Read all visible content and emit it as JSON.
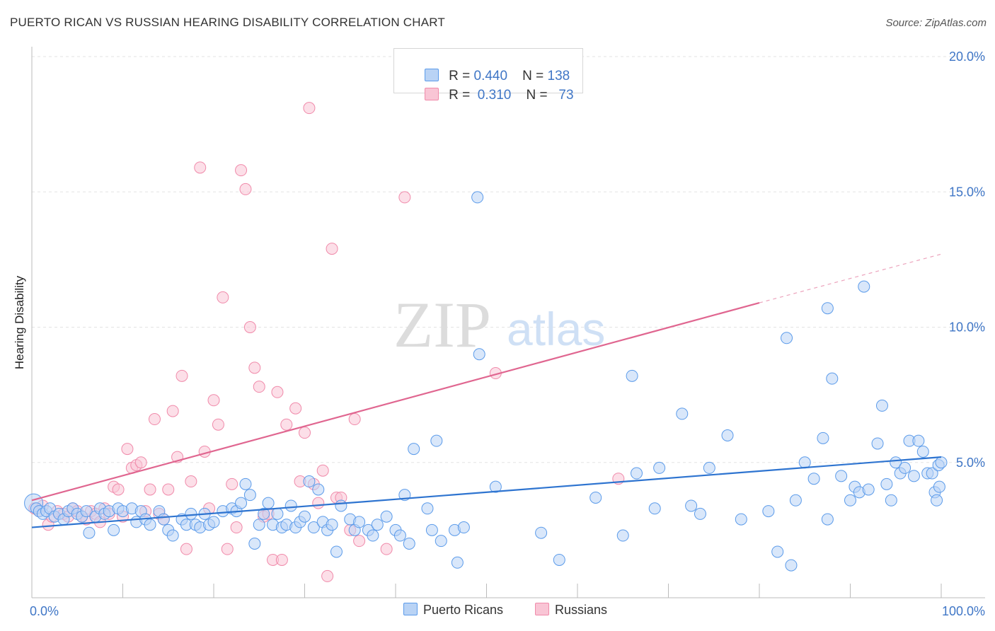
{
  "header": {
    "title": "PUERTO RICAN VS RUSSIAN HEARING DISABILITY CORRELATION CHART",
    "source": "Source: ZipAtlas.com"
  },
  "legend": {
    "series1": {
      "r_label": "R = ",
      "r_value": "0.440",
      "n_label": "N = ",
      "n_value": "138"
    },
    "series2": {
      "r_label": "R = ",
      "r_value": " 0.310",
      "n_label": "N = ",
      "n_value": "  73"
    }
  },
  "bottom_legend": {
    "series1": "Puerto Ricans",
    "series2": "Russians"
  },
  "watermark": {
    "zip": "ZIP",
    "atlas": "atlas"
  },
  "colors": {
    "blue": "#5b9bea",
    "blue_fill": "#b9d3f5",
    "blue_line": "#2e74d0",
    "pink": "#f08aaa",
    "pink_fill": "#f9c5d5",
    "pink_line": "#e06690",
    "tick_text": "#3f76c6"
  },
  "chart_data": {
    "type": "scatter",
    "title": "PUERTO RICAN VS RUSSIAN HEARING DISABILITY CORRELATION CHART",
    "xlabel": "",
    "ylabel": "Hearing Disability",
    "xlim": [
      0,
      100
    ],
    "ylim": [
      0,
      20
    ],
    "y_ticks": [
      5,
      10,
      15,
      20
    ],
    "y_tick_labels": [
      "5.0%",
      "10.0%",
      "15.0%",
      "20.0%"
    ],
    "x_tick_labels": [
      "0.0%",
      "100.0%"
    ],
    "grid": true,
    "legend_position": "top-center",
    "series": [
      {
        "name": "Puerto Ricans",
        "color": "#5b9bea",
        "trend": {
          "x1": 0,
          "y1": 2.6,
          "x2": 100,
          "y2": 5.2
        },
        "points": [
          [
            0.2,
            3.5
          ],
          [
            0.5,
            3.3
          ],
          [
            0.8,
            3.2
          ],
          [
            1.2,
            3.1
          ],
          [
            1.6,
            3.2
          ],
          [
            2.0,
            3.3
          ],
          [
            2.5,
            3.0
          ],
          [
            3.0,
            3.1
          ],
          [
            3.5,
            2.9
          ],
          [
            4.0,
            3.2
          ],
          [
            4.5,
            3.3
          ],
          [
            5.0,
            3.1
          ],
          [
            5.5,
            3.0
          ],
          [
            6.0,
            3.2
          ],
          [
            6.3,
            2.4
          ],
          [
            7.0,
            3.0
          ],
          [
            7.5,
            3.3
          ],
          [
            8.0,
            3.1
          ],
          [
            8.5,
            3.2
          ],
          [
            9.0,
            2.5
          ],
          [
            9.5,
            3.3
          ],
          [
            10.0,
            3.2
          ],
          [
            11.0,
            3.3
          ],
          [
            11.5,
            2.8
          ],
          [
            12.0,
            3.2
          ],
          [
            12.5,
            2.9
          ],
          [
            13.0,
            2.7
          ],
          [
            14.0,
            3.2
          ],
          [
            14.5,
            2.9
          ],
          [
            15.0,
            2.5
          ],
          [
            15.5,
            2.3
          ],
          [
            16.5,
            2.9
          ],
          [
            17.0,
            2.7
          ],
          [
            17.5,
            3.1
          ],
          [
            18.0,
            2.7
          ],
          [
            18.5,
            2.6
          ],
          [
            19.0,
            3.1
          ],
          [
            19.5,
            2.7
          ],
          [
            20.0,
            2.8
          ],
          [
            21.0,
            3.2
          ],
          [
            22.0,
            3.3
          ],
          [
            22.5,
            3.2
          ],
          [
            23.0,
            3.5
          ],
          [
            23.5,
            4.2
          ],
          [
            24.0,
            3.8
          ],
          [
            24.5,
            2.0
          ],
          [
            25.0,
            2.7
          ],
          [
            25.5,
            3.1
          ],
          [
            26.0,
            3.5
          ],
          [
            26.5,
            2.7
          ],
          [
            27.0,
            3.1
          ],
          [
            27.5,
            2.6
          ],
          [
            28.0,
            2.7
          ],
          [
            28.5,
            3.4
          ],
          [
            29.0,
            2.6
          ],
          [
            29.5,
            2.8
          ],
          [
            30.0,
            3.0
          ],
          [
            30.5,
            4.3
          ],
          [
            31.0,
            2.6
          ],
          [
            31.5,
            4.0
          ],
          [
            32.0,
            2.8
          ],
          [
            32.5,
            2.5
          ],
          [
            33.0,
            2.7
          ],
          [
            33.5,
            1.7
          ],
          [
            34.0,
            3.4
          ],
          [
            35.0,
            2.9
          ],
          [
            35.5,
            2.5
          ],
          [
            36.0,
            2.8
          ],
          [
            37.0,
            2.5
          ],
          [
            37.5,
            2.3
          ],
          [
            38.0,
            2.7
          ],
          [
            39.0,
            3.0
          ],
          [
            40.0,
            2.5
          ],
          [
            40.5,
            2.3
          ],
          [
            41.0,
            3.8
          ],
          [
            41.5,
            2.0
          ],
          [
            42.0,
            5.5
          ],
          [
            43.5,
            3.3
          ],
          [
            44.0,
            2.5
          ],
          [
            44.5,
            5.8
          ],
          [
            45.0,
            2.1
          ],
          [
            46.5,
            2.5
          ],
          [
            46.8,
            1.3
          ],
          [
            47.5,
            2.6
          ],
          [
            49.0,
            14.8
          ],
          [
            49.2,
            9.0
          ],
          [
            51.0,
            4.1
          ],
          [
            56.0,
            2.4
          ],
          [
            58.0,
            1.4
          ],
          [
            62.0,
            3.7
          ],
          [
            65.0,
            2.3
          ],
          [
            66.0,
            8.2
          ],
          [
            66.5,
            4.6
          ],
          [
            68.5,
            3.3
          ],
          [
            69.0,
            4.8
          ],
          [
            71.5,
            6.8
          ],
          [
            72.5,
            3.4
          ],
          [
            73.5,
            3.1
          ],
          [
            74.5,
            4.8
          ],
          [
            76.5,
            6.0
          ],
          [
            78.0,
            2.9
          ],
          [
            81.0,
            3.2
          ],
          [
            82.0,
            1.7
          ],
          [
            83.0,
            9.6
          ],
          [
            83.5,
            1.2
          ],
          [
            84.0,
            3.6
          ],
          [
            85.0,
            5.0
          ],
          [
            86.0,
            4.4
          ],
          [
            87.0,
            5.9
          ],
          [
            87.5,
            10.7
          ],
          [
            87.5,
            2.9
          ],
          [
            88.0,
            8.1
          ],
          [
            89.0,
            4.5
          ],
          [
            90.0,
            3.6
          ],
          [
            90.5,
            4.1
          ],
          [
            91.0,
            3.9
          ],
          [
            91.5,
            11.5
          ],
          [
            92.0,
            4.0
          ],
          [
            93.0,
            5.7
          ],
          [
            93.5,
            7.1
          ],
          [
            94.0,
            4.2
          ],
          [
            94.5,
            3.6
          ],
          [
            95.0,
            5.0
          ],
          [
            95.5,
            4.6
          ],
          [
            96.0,
            4.8
          ],
          [
            96.5,
            5.8
          ],
          [
            97.0,
            4.5
          ],
          [
            97.5,
            5.8
          ],
          [
            98.0,
            5.4
          ],
          [
            98.5,
            4.6
          ],
          [
            99.0,
            4.6
          ],
          [
            99.3,
            3.9
          ],
          [
            99.5,
            3.6
          ],
          [
            99.7,
            4.9
          ],
          [
            99.8,
            4.1
          ],
          [
            100.0,
            5.0
          ]
        ]
      },
      {
        "name": "Russians",
        "color": "#f08aaa",
        "trend": {
          "x1": 0,
          "y1": 3.6,
          "x2": 80,
          "y2": 10.9,
          "dash_to_x": 100,
          "dash_to_y": 12.7
        },
        "points": [
          [
            0.3,
            3.3
          ],
          [
            0.8,
            3.2
          ],
          [
            1.2,
            3.4
          ],
          [
            1.8,
            2.7
          ],
          [
            2.2,
            3.0
          ],
          [
            2.8,
            3.2
          ],
          [
            3.5,
            3.1
          ],
          [
            4.0,
            3.0
          ],
          [
            4.5,
            3.3
          ],
          [
            5.0,
            3.2
          ],
          [
            5.5,
            3.0
          ],
          [
            6.0,
            2.9
          ],
          [
            6.5,
            3.2
          ],
          [
            7.0,
            3.1
          ],
          [
            7.5,
            2.8
          ],
          [
            8.0,
            3.3
          ],
          [
            8.5,
            3.1
          ],
          [
            9.0,
            4.1
          ],
          [
            9.5,
            4.0
          ],
          [
            10.0,
            3.0
          ],
          [
            10.5,
            5.5
          ],
          [
            11.0,
            4.8
          ],
          [
            11.5,
            4.9
          ],
          [
            12.0,
            5.0
          ],
          [
            12.5,
            3.2
          ],
          [
            13.0,
            4.0
          ],
          [
            13.5,
            6.6
          ],
          [
            14.0,
            3.1
          ],
          [
            14.5,
            2.9
          ],
          [
            15.0,
            4.0
          ],
          [
            15.5,
            6.9
          ],
          [
            16.0,
            5.2
          ],
          [
            16.5,
            8.2
          ],
          [
            17.0,
            1.8
          ],
          [
            17.5,
            4.3
          ],
          [
            18.5,
            15.9
          ],
          [
            19.0,
            5.4
          ],
          [
            19.5,
            3.3
          ],
          [
            20.0,
            7.3
          ],
          [
            20.5,
            6.4
          ],
          [
            21.0,
            11.1
          ],
          [
            21.5,
            1.8
          ],
          [
            22.0,
            4.2
          ],
          [
            22.5,
            2.6
          ],
          [
            23.0,
            15.8
          ],
          [
            23.5,
            15.1
          ],
          [
            24.0,
            10.0
          ],
          [
            24.5,
            8.5
          ],
          [
            25.0,
            7.8
          ],
          [
            25.5,
            3.0
          ],
          [
            26.0,
            3.1
          ],
          [
            26.5,
            1.4
          ],
          [
            27.0,
            7.6
          ],
          [
            27.5,
            1.4
          ],
          [
            28.0,
            6.4
          ],
          [
            29.0,
            7.0
          ],
          [
            29.5,
            4.3
          ],
          [
            30.0,
            6.1
          ],
          [
            30.5,
            18.1
          ],
          [
            31.0,
            4.2
          ],
          [
            31.5,
            3.5
          ],
          [
            32.0,
            4.7
          ],
          [
            32.5,
            0.8
          ],
          [
            33.0,
            12.9
          ],
          [
            33.5,
            3.7
          ],
          [
            34.0,
            3.7
          ],
          [
            35.0,
            2.5
          ],
          [
            35.5,
            6.6
          ],
          [
            36.0,
            2.1
          ],
          [
            39.0,
            1.8
          ],
          [
            41.0,
            14.8
          ],
          [
            51.0,
            8.3
          ],
          [
            64.5,
            4.4
          ]
        ]
      }
    ]
  }
}
